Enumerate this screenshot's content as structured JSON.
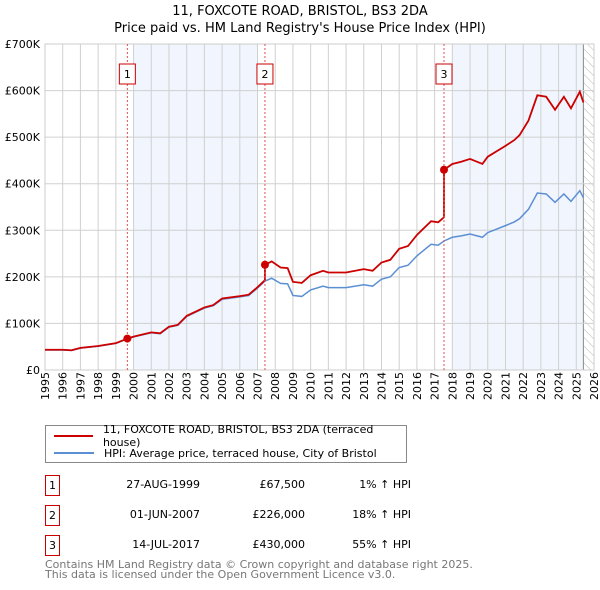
{
  "chart_data": {
    "type": "line",
    "title": "11, FOXCOTE ROAD, BRISTOL, BS3 2DA",
    "subtitle": "Price paid vs. HM Land Registry's House Price Index (HPI)",
    "xlim": [
      1995,
      2026
    ],
    "ylim": [
      0,
      700000
    ],
    "x_ticks": [
      "1995",
      "1996",
      "1997",
      "1998",
      "1999",
      "2000",
      "2001",
      "2002",
      "2003",
      "2004",
      "2005",
      "2006",
      "2007",
      "2008",
      "2009",
      "2010",
      "2011",
      "2012",
      "2013",
      "2014",
      "2015",
      "2016",
      "2017",
      "2018",
      "2019",
      "2020",
      "2021",
      "2022",
      "2023",
      "2024",
      "2025",
      "2026"
    ],
    "y_ticks": [
      {
        "v": 0,
        "label": "£0"
      },
      {
        "v": 100000,
        "label": "£100K"
      },
      {
        "v": 200000,
        "label": "£200K"
      },
      {
        "v": 300000,
        "label": "£300K"
      },
      {
        "v": 400000,
        "label": "£400K"
      },
      {
        "v": 500000,
        "label": "£500K"
      },
      {
        "v": 600000,
        "label": "£600K"
      },
      {
        "v": 700000,
        "label": "£700K"
      }
    ],
    "grid": true,
    "shaded_ranges": [
      [
        2000,
        2007
      ],
      [
        2018,
        2025.4
      ]
    ],
    "hatched_from": 2025.4,
    "hpi_series": {
      "name": "HPI: Average price, terraced house, City of Bristol",
      "color": "#5b8fd4",
      "x": [
        1995,
        1996,
        1996.5,
        1997,
        1998,
        1999,
        1999.65,
        2000,
        2001,
        2001.5,
        2002,
        2002.5,
        2003,
        2004,
        2004.5,
        2005,
        2006,
        2006.5,
        2007,
        2007.42,
        2007.8,
        2008.3,
        2008.7,
        2009,
        2009.5,
        2010,
        2010.7,
        2011,
        2012,
        2013,
        2013.5,
        2014,
        2014.5,
        2015,
        2015.5,
        2016,
        2016.8,
        2017.2,
        2017.53,
        2018,
        2018.5,
        2019,
        2019.7,
        2020,
        2021,
        2021.5,
        2021.8,
        2022.3,
        2022.8,
        2023.3,
        2023.8,
        2024.3,
        2024.7,
        2025.2,
        2025.4
      ],
      "values": [
        43000,
        43000,
        42000,
        47000,
        51000,
        57000,
        66800,
        71000,
        80000,
        78000,
        92000,
        96000,
        115000,
        133000,
        138000,
        152000,
        157000,
        160000,
        176000,
        191000,
        197000,
        186000,
        185000,
        160000,
        158000,
        172000,
        180000,
        177000,
        177000,
        183000,
        180000,
        195000,
        200000,
        220000,
        225000,
        245000,
        270000,
        268000,
        277000,
        285000,
        288000,
        292000,
        285000,
        295000,
        310000,
        318000,
        325000,
        345000,
        380000,
        378000,
        360000,
        378000,
        362000,
        385000,
        370000
      ]
    },
    "property_series": {
      "name": "11, FOXCOTE ROAD, BRISTOL, BS3 2DA (terraced house)",
      "color": "#cc0000"
    },
    "sales": [
      {
        "id": "1",
        "x": 1999.65,
        "price": 67500
      },
      {
        "id": "2",
        "x": 2007.42,
        "price": 226000
      },
      {
        "id": "3",
        "x": 2017.53,
        "price": 430000
      }
    ]
  },
  "legend": {
    "property_label": "11, FOXCOTE ROAD, BRISTOL, BS3 2DA (terraced house)",
    "hpi_label": "HPI: Average price, terraced house, City of Bristol"
  },
  "transactions": [
    {
      "num": "1",
      "date": "27-AUG-1999",
      "price": "£67,500",
      "hpi": "1% ↑ HPI"
    },
    {
      "num": "2",
      "date": "01-JUN-2007",
      "price": "£226,000",
      "hpi": "18% ↑ HPI"
    },
    {
      "num": "3",
      "date": "14-JUL-2017",
      "price": "£430,000",
      "hpi": "55% ↑ HPI"
    }
  ],
  "footer": {
    "line1": "Contains HM Land Registry data © Crown copyright and database right 2025.",
    "line2": "This data is licensed under the Open Government Licence v3.0."
  }
}
